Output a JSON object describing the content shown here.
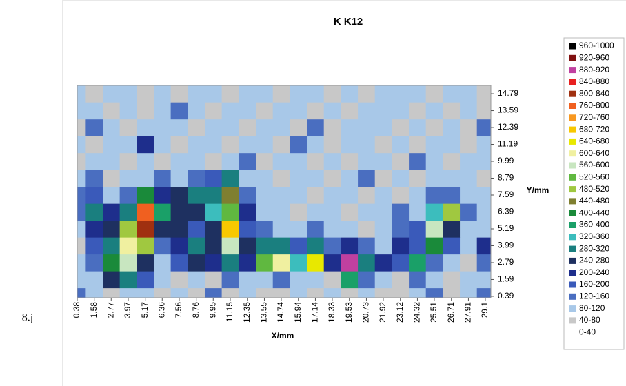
{
  "chart_data": {
    "type": "heatmap",
    "title": "K K12",
    "x_label": "X/mm",
    "y_label": "Y/mm",
    "side_note": "8.j",
    "xticks": [
      0.38,
      1.58,
      2.77,
      3.97,
      5.17,
      6.36,
      7.56,
      8.76,
      9.95,
      11.15,
      12.35,
      13.55,
      14.74,
      15.94,
      17.14,
      18.33,
      19.53,
      20.73,
      21.92,
      23.12,
      24.32,
      25.51,
      26.71,
      27.91,
      29.1
    ],
    "yticks": [
      0.39,
      1.59,
      2.79,
      3.99,
      5.19,
      6.39,
      7.59,
      8.79,
      9.99,
      11.19,
      12.39,
      13.59,
      14.79
    ],
    "xlim": [
      0.38,
      29.49
    ],
    "ylim": [
      0.29,
      15.38
    ],
    "x": [
      0.38,
      1.58,
      2.77,
      3.97,
      5.17,
      6.36,
      7.56,
      8.76,
      9.95,
      11.15,
      12.35,
      13.55,
      14.74,
      15.94,
      17.14,
      18.33,
      19.53,
      20.73,
      21.92,
      23.12,
      24.32,
      25.51,
      26.71,
      27.91,
      29.1
    ],
    "y": [
      0.39,
      1.59,
      2.79,
      3.99,
      5.19,
      6.39,
      7.59,
      8.79,
      9.99,
      11.19,
      12.39,
      13.59,
      14.79
    ],
    "z": [
      [
        120,
        80,
        60,
        80,
        100,
        60,
        80,
        60,
        120,
        60,
        80,
        60,
        40,
        80,
        60,
        100,
        60,
        80,
        40,
        60,
        80,
        120,
        60,
        80,
        140
      ],
      [
        100,
        80,
        260,
        300,
        180,
        80,
        60,
        100,
        60,
        120,
        100,
        80,
        120,
        100,
        80,
        60,
        360,
        120,
        80,
        60,
        140,
        80,
        60,
        100,
        80
      ],
      [
        80,
        120,
        420,
        560,
        240,
        100,
        160,
        240,
        200,
        300,
        200,
        520,
        620,
        320,
        660,
        200,
        880,
        280,
        200,
        160,
        360,
        140,
        100,
        60,
        120
      ],
      [
        60,
        160,
        300,
        620,
        500,
        140,
        200,
        280,
        240,
        560,
        240,
        300,
        280,
        160,
        300,
        140,
        220,
        120,
        100,
        200,
        180,
        420,
        160,
        80,
        200
      ],
      [
        100,
        200,
        240,
        480,
        820,
        260,
        240,
        180,
        260,
        680,
        160,
        120,
        100,
        80,
        120,
        100,
        80,
        60,
        80,
        120,
        160,
        560,
        260,
        100,
        100
      ],
      [
        140,
        280,
        200,
        300,
        760,
        360,
        260,
        240,
        320,
        520,
        200,
        100,
        80,
        60,
        100,
        80,
        60,
        100,
        80,
        120,
        80,
        320,
        480,
        140,
        80
      ],
      [
        120,
        160,
        100,
        120,
        420,
        200,
        240,
        280,
        300,
        440,
        120,
        80,
        100,
        80,
        60,
        80,
        100,
        60,
        80,
        60,
        100,
        120,
        140,
        80,
        100
      ],
      [
        80,
        120,
        60,
        100,
        100,
        120,
        80,
        120,
        160,
        300,
        80,
        100,
        60,
        100,
        80,
        60,
        80,
        120,
        60,
        80,
        60,
        100,
        80,
        100,
        60
      ],
      [
        60,
        100,
        80,
        60,
        80,
        40,
        100,
        80,
        60,
        80,
        120,
        60,
        100,
        80,
        60,
        100,
        60,
        80,
        100,
        60,
        120,
        80,
        60,
        80,
        100
      ],
      [
        80,
        60,
        100,
        80,
        200,
        80,
        60,
        100,
        80,
        60,
        80,
        100,
        60,
        120,
        80,
        60,
        100,
        80,
        60,
        100,
        60,
        80,
        100,
        60,
        80
      ],
      [
        60,
        120,
        80,
        60,
        80,
        100,
        80,
        60,
        100,
        80,
        60,
        80,
        100,
        60,
        140,
        60,
        80,
        100,
        80,
        60,
        80,
        60,
        80,
        60,
        120
      ],
      [
        100,
        80,
        60,
        100,
        60,
        80,
        120,
        80,
        60,
        100,
        80,
        60,
        80,
        100,
        60,
        80,
        60,
        80,
        100,
        80,
        60,
        100,
        60,
        80,
        60
      ],
      [
        80,
        60,
        100,
        80,
        60,
        80,
        60,
        100,
        80,
        60,
        100,
        80,
        60,
        80,
        100,
        60,
        80,
        60,
        80,
        100,
        80,
        60,
        100,
        80,
        60
      ]
    ],
    "bins": [
      0,
      40,
      80,
      120,
      160,
      200,
      240,
      280,
      320,
      360,
      400,
      440,
      480,
      520,
      560,
      600,
      640,
      680,
      720,
      760,
      800,
      840,
      880,
      920,
      960,
      1000
    ],
    "bin_labels": [
      "0-40",
      "40-80",
      "80-120",
      "120-160",
      "160-200",
      "200-240",
      "240-280",
      "280-320",
      "320-360",
      "360-400",
      "400-440",
      "440-480",
      "480-520",
      "520-560",
      "560-600",
      "600-640",
      "640-680",
      "680-720",
      "720-760",
      "760-800",
      "800-840",
      "840-880",
      "880-920",
      "920-960",
      "960-1000"
    ],
    "bin_colors": [
      "#ffffff",
      "#c8c8c8",
      "#a8c8e8",
      "#4a6ec0",
      "#3a5aba",
      "#1e2e8c",
      "#1e3060",
      "#1a7f7f",
      "#3cbdbd",
      "#1aa068",
      "#1a8a3a",
      "#7f7f30",
      "#a0c840",
      "#60b840",
      "#c8e6c0",
      "#f0f0a0",
      "#e8e800",
      "#f8c800",
      "#f89820",
      "#f06020",
      "#a03010",
      "#e82020",
      "#c040a0",
      "#801010",
      "#000000"
    ]
  }
}
